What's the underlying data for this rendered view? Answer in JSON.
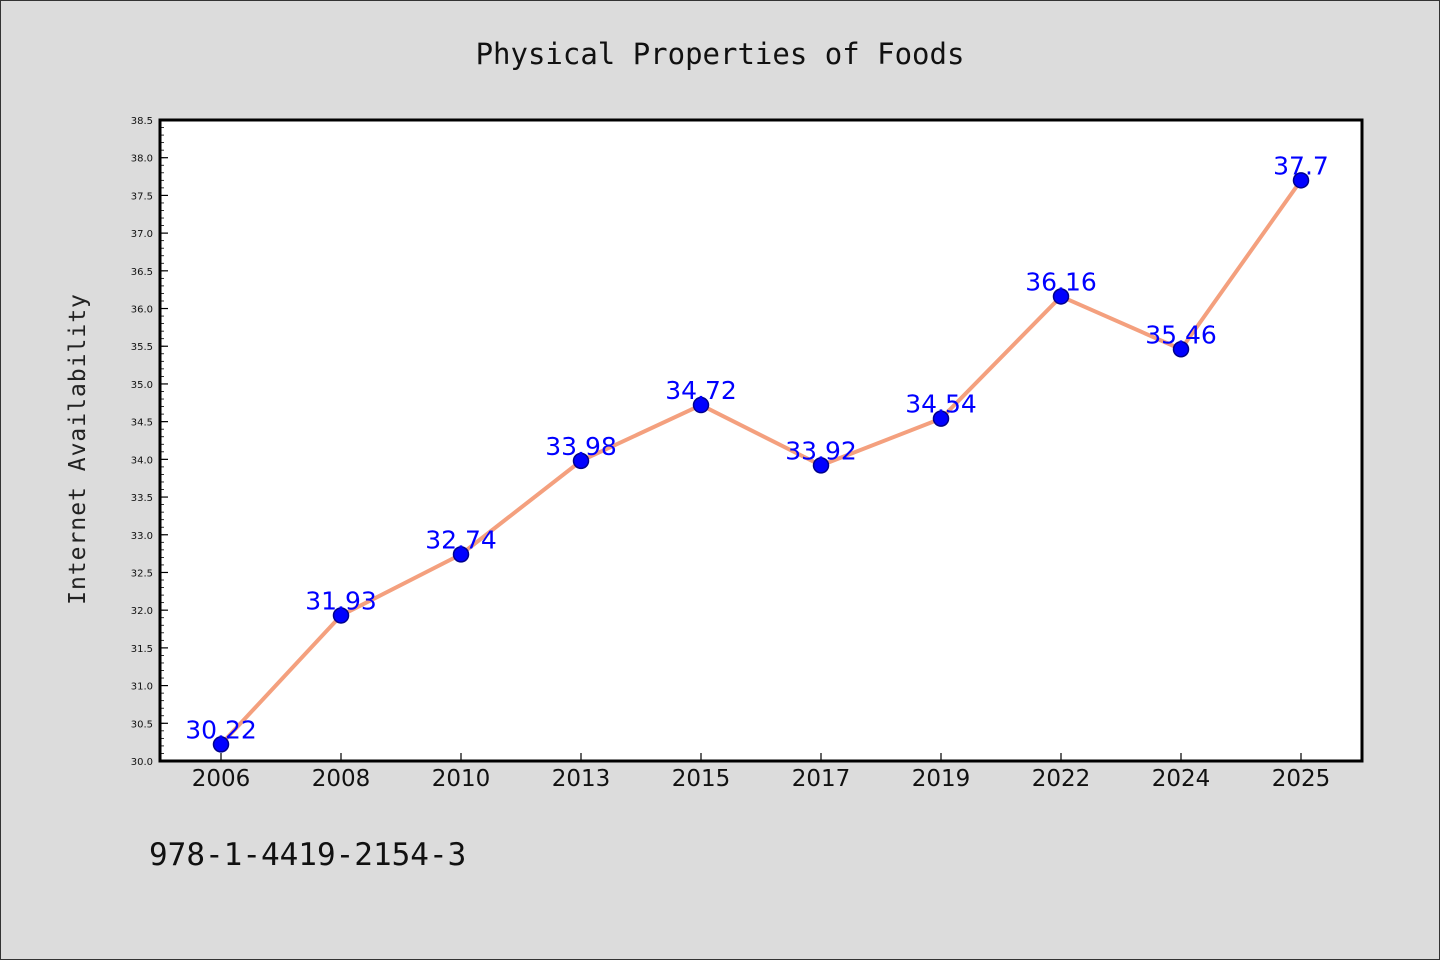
{
  "chart_data": {
    "type": "line",
    "title": "Physical Properties of Foods",
    "xlabel": "",
    "ylabel": "Internet Availability",
    "categories": [
      "2006",
      "2008",
      "2010",
      "2013",
      "2015",
      "2017",
      "2019",
      "2022",
      "2024",
      "2025"
    ],
    "series": [
      {
        "values": [
          30.22,
          31.93,
          32.74,
          33.98,
          34.72,
          33.92,
          34.54,
          36.16,
          35.46,
          37.7
        ],
        "labels": [
          "30.22",
          "31.93",
          "32.74",
          "33.98",
          "34.72",
          "33.92",
          "34.54",
          "36.16",
          "35.46",
          "37.7"
        ]
      }
    ],
    "ylim": [
      30.0,
      38.5
    ],
    "yticks": [
      "30.0",
      "30.5",
      "31.0",
      "31.5",
      "32.0",
      "32.5",
      "33.0",
      "33.5",
      "34.0",
      "34.5",
      "35.0",
      "35.5",
      "36.0",
      "36.5",
      "37.0",
      "37.5",
      "38.0",
      "38.5"
    ],
    "grid": false,
    "colors": {
      "line": "#f4a07e",
      "marker": "#0000ff",
      "marker_edge": "#00008b",
      "label": "#0000ff",
      "background": "#dcdcdc",
      "plot_background": "#ffffff"
    }
  },
  "footer": {
    "text": "978-1-4419-2154-3"
  }
}
